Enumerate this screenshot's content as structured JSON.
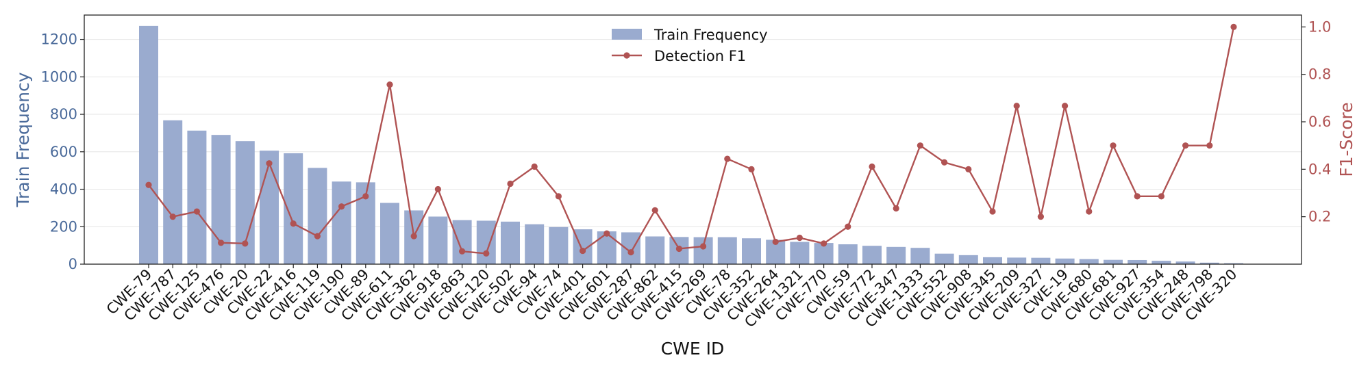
{
  "chart_data": {
    "type": "bar+line",
    "xlabel": "CWE ID",
    "categories": [
      "CWE-79",
      "CWE-787",
      "CWE-125",
      "CWE-476",
      "CWE-20",
      "CWE-22",
      "CWE-416",
      "CWE-119",
      "CWE-190",
      "CWE-89",
      "CWE-611",
      "CWE-362",
      "CWE-918",
      "CWE-863",
      "CWE-120",
      "CWE-502",
      "CWE-94",
      "CWE-74",
      "CWE-401",
      "CWE-601",
      "CWE-287",
      "CWE-862",
      "CWE-415",
      "CWE-269",
      "CWE-78",
      "CWE-352",
      "CWE-264",
      "CWE-1321",
      "CWE-770",
      "CWE-59",
      "CWE-772",
      "CWE-347",
      "CWE-1333",
      "CWE-552",
      "CWE-908",
      "CWE-345",
      "CWE-209",
      "CWE-327",
      "CWE-19",
      "CWE-680",
      "CWE-681",
      "CWE-927",
      "CWE-354",
      "CWE-248",
      "CWE-798",
      "CWE-320"
    ],
    "series": [
      {
        "name": "Train Frequency",
        "axis": "left",
        "kind": "bar",
        "color": "#9aabcf",
        "values": [
          1272,
          768,
          713,
          690,
          657,
          606,
          592,
          514,
          441,
          437,
          327,
          287,
          254,
          235,
          232,
          227,
          213,
          198,
          186,
          175,
          170,
          148,
          145,
          144,
          144,
          138,
          130,
          119,
          113,
          106,
          98,
          92,
          87,
          56,
          48,
          37,
          35,
          34,
          30,
          27,
          23,
          22,
          18,
          14,
          8,
          5
        ]
      },
      {
        "name": "Detection F1",
        "axis": "right",
        "kind": "line",
        "color": "#b05353",
        "values": [
          0.334,
          0.2,
          0.222,
          0.09,
          0.087,
          0.425,
          0.171,
          0.118,
          0.243,
          0.286,
          0.757,
          0.118,
          0.316,
          0.054,
          0.045,
          0.339,
          0.411,
          0.286,
          0.056,
          0.129,
          0.05,
          0.227,
          0.065,
          0.075,
          0.444,
          0.4,
          0.094,
          0.111,
          0.087,
          0.158,
          0.411,
          0.235,
          0.5,
          0.429,
          0.4,
          0.222,
          0.667,
          0.2,
          0.667,
          0.222,
          0.5,
          0.286,
          0.286,
          0.5,
          0.5,
          1.0
        ]
      }
    ],
    "left_axis": {
      "label": "Train Frequency",
      "color": "#4a6a9a",
      "ylim": [
        0,
        1330
      ],
      "ticks": [
        0,
        200,
        400,
        600,
        800,
        1000,
        1200
      ],
      "tick_labels": [
        "0",
        "200",
        "400",
        "600",
        "800",
        "1000",
        "1200"
      ]
    },
    "right_axis": {
      "label": "F1-Score",
      "color": "#b05353",
      "ylim": [
        0.0,
        1.05
      ],
      "ticks": [
        0.2,
        0.4,
        0.6,
        0.8,
        1.0
      ],
      "tick_labels": [
        "0.2",
        "0.4",
        "0.6",
        "0.8",
        "1.0"
      ]
    },
    "legend": {
      "placement": "top-center",
      "entries": [
        "Train Frequency",
        "Detection F1"
      ]
    },
    "grid": "horizontal"
  }
}
